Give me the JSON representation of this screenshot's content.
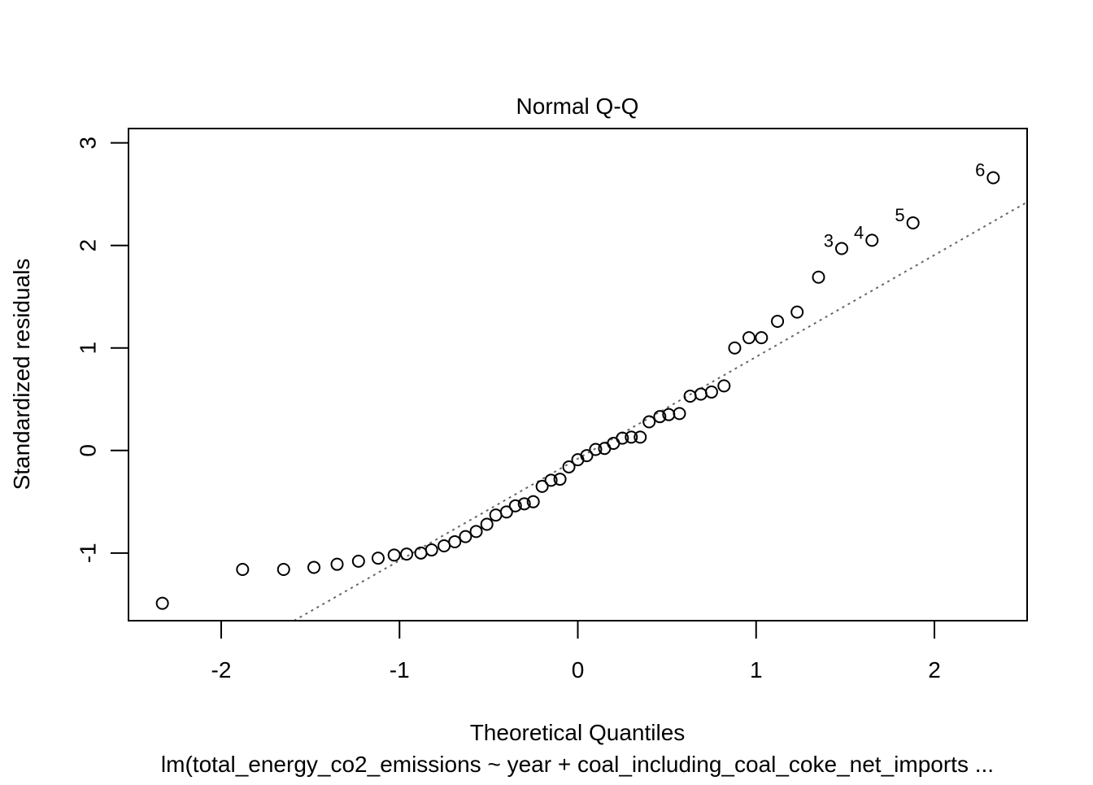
{
  "chart_data": {
    "type": "scatter",
    "title": "Normal Q-Q",
    "xlabel": "Theoretical Quantiles",
    "ylabel": "Standardized residuals",
    "subtitle": "lm(total_energy_co2_emissions ~ year + coal_including_coal_coke_net_imports ...",
    "xlim": [
      -2.52,
      2.52
    ],
    "ylim": [
      -1.66,
      3.14
    ],
    "x_ticks": [
      -2,
      -1,
      0,
      1,
      2
    ],
    "x_tick_labels": [
      "-2",
      "-1",
      "0",
      "1",
      "2"
    ],
    "y_ticks": [
      -1,
      0,
      1,
      2,
      3
    ],
    "y_tick_labels": [
      "-1",
      "0",
      "1",
      "2",
      "3"
    ],
    "grid": false,
    "reference_line": {
      "slope": 0.993,
      "intercept": -0.08,
      "style": "dotted",
      "color": "#666666"
    },
    "points": [
      {
        "x": -2.33,
        "y": -1.49
      },
      {
        "x": -1.88,
        "y": -1.16
      },
      {
        "x": -1.65,
        "y": -1.16
      },
      {
        "x": -1.48,
        "y": -1.14
      },
      {
        "x": -1.35,
        "y": -1.11
      },
      {
        "x": -1.23,
        "y": -1.08
      },
      {
        "x": -1.12,
        "y": -1.05
      },
      {
        "x": -1.03,
        "y": -1.02
      },
      {
        "x": -0.96,
        "y": -1.01
      },
      {
        "x": -0.88,
        "y": -1.0
      },
      {
        "x": -0.82,
        "y": -0.97
      },
      {
        "x": -0.75,
        "y": -0.93
      },
      {
        "x": -0.69,
        "y": -0.89
      },
      {
        "x": -0.63,
        "y": -0.84
      },
      {
        "x": -0.57,
        "y": -0.79
      },
      {
        "x": -0.51,
        "y": -0.72
      },
      {
        "x": -0.46,
        "y": -0.63
      },
      {
        "x": -0.4,
        "y": -0.6
      },
      {
        "x": -0.35,
        "y": -0.54
      },
      {
        "x": -0.3,
        "y": -0.52
      },
      {
        "x": -0.25,
        "y": -0.5
      },
      {
        "x": -0.2,
        "y": -0.35
      },
      {
        "x": -0.15,
        "y": -0.29
      },
      {
        "x": -0.1,
        "y": -0.28
      },
      {
        "x": -0.05,
        "y": -0.16
      },
      {
        "x": 0.0,
        "y": -0.09
      },
      {
        "x": 0.05,
        "y": -0.05
      },
      {
        "x": 0.1,
        "y": 0.01
      },
      {
        "x": 0.15,
        "y": 0.02
      },
      {
        "x": 0.2,
        "y": 0.07
      },
      {
        "x": 0.25,
        "y": 0.12
      },
      {
        "x": 0.3,
        "y": 0.13
      },
      {
        "x": 0.35,
        "y": 0.13
      },
      {
        "x": 0.4,
        "y": 0.28
      },
      {
        "x": 0.46,
        "y": 0.33
      },
      {
        "x": 0.51,
        "y": 0.35
      },
      {
        "x": 0.57,
        "y": 0.36
      },
      {
        "x": 0.63,
        "y": 0.53
      },
      {
        "x": 0.69,
        "y": 0.55
      },
      {
        "x": 0.75,
        "y": 0.57
      },
      {
        "x": 0.82,
        "y": 0.63
      },
      {
        "x": 0.88,
        "y": 1.0
      },
      {
        "x": 0.96,
        "y": 1.1
      },
      {
        "x": 1.03,
        "y": 1.1
      },
      {
        "x": 1.12,
        "y": 1.26
      },
      {
        "x": 1.23,
        "y": 1.35
      },
      {
        "x": 1.35,
        "y": 1.69
      },
      {
        "x": 1.48,
        "y": 1.97,
        "label": "3"
      },
      {
        "x": 1.65,
        "y": 2.05,
        "label": "4"
      },
      {
        "x": 1.88,
        "y": 2.22,
        "label": "5"
      },
      {
        "x": 2.33,
        "y": 2.66,
        "label": "6"
      }
    ]
  }
}
